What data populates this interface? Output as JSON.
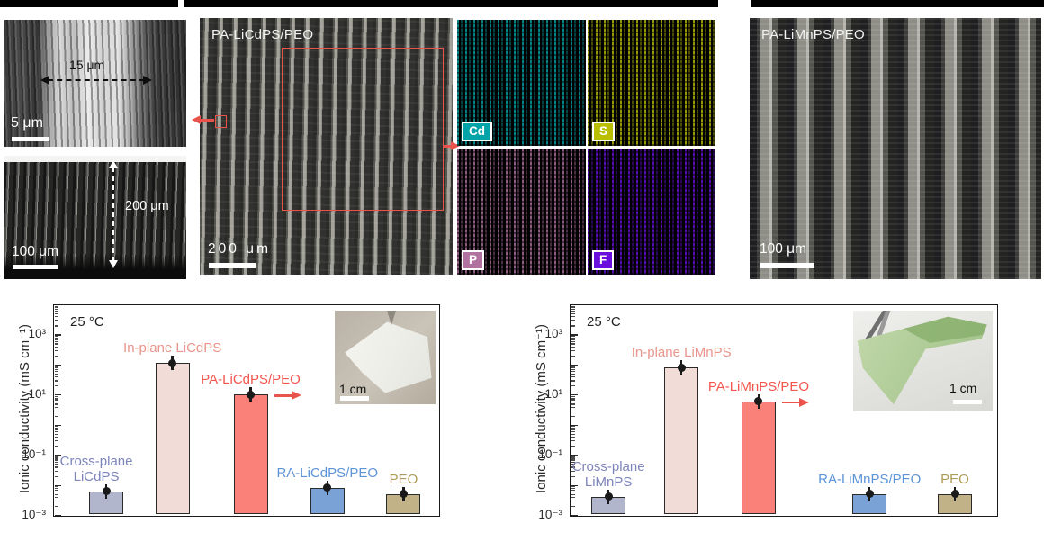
{
  "figure": {
    "panel_a": {
      "zoom_width_label": "15 μm",
      "zoom_scale_label": "5 μm",
      "thickness_label": "200 μm",
      "cross_scale_label": "100 μm"
    },
    "panel_b": {
      "title": "PA-LiCdPS/PEO",
      "scale_label": "200 μm",
      "annotation_color": "#e8544c",
      "eds_maps": [
        {
          "element": "Cd",
          "color_rgb": [
            0,
            164,
            168
          ]
        },
        {
          "element": "S",
          "color_rgb": [
            186,
            190,
            0
          ]
        },
        {
          "element": "P",
          "color_rgb": [
            178,
            114,
            160
          ]
        },
        {
          "element": "F",
          "color_rgb": [
            106,
            16,
            221
          ]
        }
      ]
    },
    "panel_c": {
      "title": "PA-LiMnPS/PEO",
      "scale_label": "100 μm"
    }
  },
  "chart_data": [
    {
      "type": "bar",
      "log_scale": true,
      "temperature_label": "25 °C",
      "ylabel": "Ionic conductivity (mS cm⁻¹)",
      "yticks": [
        "10³",
        "10¹",
        "10⁻¹",
        "10⁻³"
      ],
      "ytick_values": [
        1000,
        10,
        0.1,
        0.001
      ],
      "ylim": [
        0.001,
        10000
      ],
      "categories": [
        "Cross-plane LiCdPS",
        "In-plane LiCdPS",
        "PA-LiCdPS/PEO",
        "RA-LiCdPS/PEO",
        "PEO"
      ],
      "values": [
        0.006,
        110,
        10,
        0.008,
        0.005
      ],
      "units": "mS cm⁻¹",
      "bar_colors": [
        "#b2b6cc",
        "#f2dcd7",
        "#f9817a",
        "#7ba2d7",
        "#c2b287"
      ],
      "label_colors": [
        "#7d85bb",
        "#e9958c",
        "#f4564e",
        "#5c94d8",
        "#ad9c55"
      ],
      "bar_labels": [
        [
          "Cross-plane",
          "LiCdPS"
        ],
        [
          "In-plane LiCdPS"
        ],
        [
          "PA-LiCdPS/PEO"
        ],
        [
          "RA-LiCdPS/PEO"
        ],
        [
          "PEO"
        ]
      ],
      "inset_scale_label": "1 cm"
    },
    {
      "type": "bar",
      "log_scale": true,
      "temperature_label": "25 °C",
      "ylabel": "Ionic conductivity (mS cm⁻¹)",
      "yticks": [
        "10³",
        "10¹",
        "10⁻¹",
        "10⁻³"
      ],
      "ytick_values": [
        1000,
        10,
        0.1,
        0.001
      ],
      "ylim": [
        0.001,
        10000
      ],
      "categories": [
        "Cross-plane LiMnPS",
        "In-plane LiMnPS",
        "PA-LiMnPS/PEO",
        "RA-LiMnPS/PEO",
        "PEO"
      ],
      "values": [
        0.004,
        80,
        6,
        0.005,
        0.005
      ],
      "units": "mS cm⁻¹",
      "bar_colors": [
        "#b2b6cc",
        "#f2dcd7",
        "#f9817a",
        "#7ba2d7",
        "#c2b287"
      ],
      "label_colors": [
        "#7d85bb",
        "#e9958c",
        "#f4564e",
        "#5c94d8",
        "#ad9c55"
      ],
      "bar_labels": [
        [
          "Cross-plane",
          "LiMnPS"
        ],
        [
          "In-plane LiMnPS"
        ],
        [
          "PA-LiMnPS/PEO"
        ],
        [
          "RA-LiMnPS/PEO"
        ],
        [
          "PEO"
        ]
      ],
      "inset_scale_label": "1 cm"
    }
  ]
}
